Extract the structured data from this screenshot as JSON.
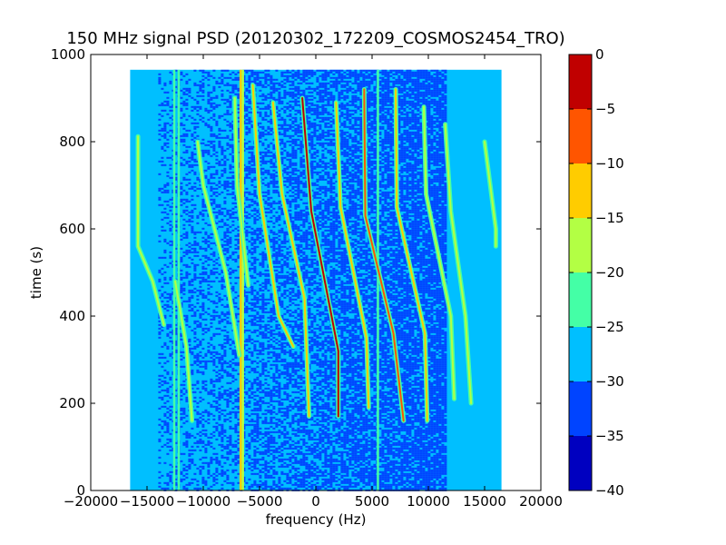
{
  "chart_data": {
    "type": "heatmap",
    "title": "150 MHz signal PSD (20120302_172209_COSMOS2454_TRO)",
    "xlabel": "frequency (Hz)",
    "ylabel": "time (s)",
    "xlim": [
      -20000,
      20000
    ],
    "ylim": [
      0,
      1000
    ],
    "x_ticks": [
      -20000,
      -15000,
      -10000,
      -5000,
      0,
      5000,
      10000,
      15000,
      20000
    ],
    "x_tick_labels": [
      "−20000",
      "−15000",
      "−10000",
      "−5000",
      "0",
      "5000",
      "10000",
      "15000",
      "20000"
    ],
    "y_ticks": [
      0,
      200,
      400,
      600,
      800,
      1000
    ],
    "y_tick_labels": [
      "0",
      "200",
      "400",
      "600",
      "800",
      "1000"
    ],
    "data_extent": {
      "x": [
        -16500,
        16500
      ],
      "y": [
        0,
        965
      ]
    },
    "background_level": -30,
    "vertical_lines": [
      {
        "x": -12600,
        "level": -25
      },
      {
        "x": -12200,
        "level": -25
      },
      {
        "x": -6700,
        "level": -15
      },
      {
        "x": -6500,
        "level": -20
      },
      {
        "x": 5500,
        "level": -25
      }
    ],
    "traces": [
      {
        "points": [
          [
            -15800,
            812
          ],
          [
            -15800,
            560
          ],
          [
            -14500,
            480
          ],
          [
            -13500,
            380
          ]
        ],
        "level": -20
      },
      {
        "points": [
          [
            -12500,
            480
          ],
          [
            -11500,
            330
          ],
          [
            -11000,
            160
          ]
        ],
        "level": -20
      },
      {
        "points": [
          [
            -10500,
            800
          ],
          [
            -10000,
            700
          ],
          [
            -8000,
            500
          ],
          [
            -6800,
            310
          ]
        ],
        "level": -20
      },
      {
        "points": [
          [
            -7200,
            900
          ],
          [
            -7000,
            700
          ],
          [
            -6000,
            470
          ]
        ],
        "level": -20
      },
      {
        "points": [
          [
            -5600,
            930
          ],
          [
            -5000,
            680
          ],
          [
            -3300,
            400
          ],
          [
            -2000,
            330
          ]
        ],
        "level": -15
      },
      {
        "points": [
          [
            -3800,
            890
          ],
          [
            -3000,
            680
          ],
          [
            -1000,
            440
          ],
          [
            -600,
            170
          ]
        ],
        "level": -15
      },
      {
        "points": [
          [
            -1200,
            900
          ],
          [
            -400,
            640
          ],
          [
            2000,
            320
          ],
          [
            2000,
            170
          ]
        ],
        "level": -5
      },
      {
        "points": [
          [
            1800,
            890
          ],
          [
            2200,
            650
          ],
          [
            4500,
            350
          ],
          [
            4700,
            190
          ]
        ],
        "level": -15
      },
      {
        "points": [
          [
            4300,
            920
          ],
          [
            4400,
            630
          ],
          [
            6900,
            360
          ],
          [
            7800,
            160
          ]
        ],
        "level": -10
      },
      {
        "points": [
          [
            7100,
            920
          ],
          [
            7200,
            650
          ],
          [
            9700,
            360
          ],
          [
            9900,
            160
          ]
        ],
        "level": -15
      },
      {
        "points": [
          [
            9600,
            880
          ],
          [
            9800,
            680
          ],
          [
            12000,
            400
          ],
          [
            12300,
            210
          ]
        ],
        "level": -20
      },
      {
        "points": [
          [
            11500,
            840
          ],
          [
            12000,
            640
          ],
          [
            13300,
            400
          ],
          [
            13800,
            200
          ]
        ],
        "level": -20
      },
      {
        "points": [
          [
            15000,
            800
          ],
          [
            16000,
            600
          ],
          [
            16000,
            560
          ]
        ],
        "level": -20
      }
    ],
    "colorbar": {
      "range": [
        -40,
        0
      ],
      "levels": [
        -40,
        -35,
        -30,
        -25,
        -20,
        -15,
        -10,
        -5,
        0
      ],
      "tick_labels": [
        "0",
        "−5",
        "−10",
        "−15",
        "−20",
        "−25",
        "−30",
        "−35",
        "−40"
      ],
      "colors": [
        "#0000c0",
        "#0044ff",
        "#00bfff",
        "#44ffa6",
        "#b3ff44",
        "#ffcc00",
        "#ff5500",
        "#c00000"
      ]
    }
  }
}
